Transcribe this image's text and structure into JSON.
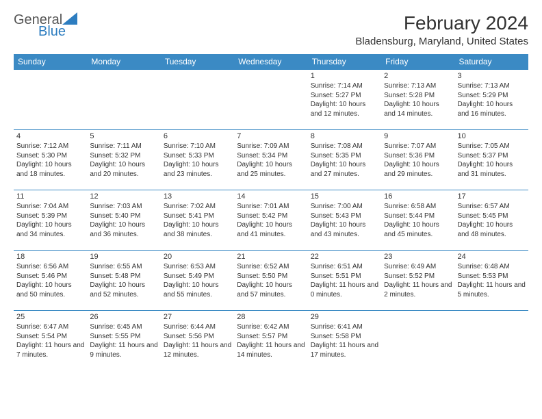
{
  "brand": {
    "general": "General",
    "blue": "Blue",
    "accent_color": "#2d7dc0"
  },
  "title": "February 2024",
  "location": "Bladensburg, Maryland, United States",
  "header_bg": "#3b8ac4",
  "weekdays": [
    "Sunday",
    "Monday",
    "Tuesday",
    "Wednesday",
    "Thursday",
    "Friday",
    "Saturday"
  ],
  "weeks": [
    [
      null,
      null,
      null,
      null,
      {
        "n": "1",
        "sr": "Sunrise: 7:14 AM",
        "ss": "Sunset: 5:27 PM",
        "dl": "Daylight: 10 hours and 12 minutes."
      },
      {
        "n": "2",
        "sr": "Sunrise: 7:13 AM",
        "ss": "Sunset: 5:28 PM",
        "dl": "Daylight: 10 hours and 14 minutes."
      },
      {
        "n": "3",
        "sr": "Sunrise: 7:13 AM",
        "ss": "Sunset: 5:29 PM",
        "dl": "Daylight: 10 hours and 16 minutes."
      }
    ],
    [
      {
        "n": "4",
        "sr": "Sunrise: 7:12 AM",
        "ss": "Sunset: 5:30 PM",
        "dl": "Daylight: 10 hours and 18 minutes."
      },
      {
        "n": "5",
        "sr": "Sunrise: 7:11 AM",
        "ss": "Sunset: 5:32 PM",
        "dl": "Daylight: 10 hours and 20 minutes."
      },
      {
        "n": "6",
        "sr": "Sunrise: 7:10 AM",
        "ss": "Sunset: 5:33 PM",
        "dl": "Daylight: 10 hours and 23 minutes."
      },
      {
        "n": "7",
        "sr": "Sunrise: 7:09 AM",
        "ss": "Sunset: 5:34 PM",
        "dl": "Daylight: 10 hours and 25 minutes."
      },
      {
        "n": "8",
        "sr": "Sunrise: 7:08 AM",
        "ss": "Sunset: 5:35 PM",
        "dl": "Daylight: 10 hours and 27 minutes."
      },
      {
        "n": "9",
        "sr": "Sunrise: 7:07 AM",
        "ss": "Sunset: 5:36 PM",
        "dl": "Daylight: 10 hours and 29 minutes."
      },
      {
        "n": "10",
        "sr": "Sunrise: 7:05 AM",
        "ss": "Sunset: 5:37 PM",
        "dl": "Daylight: 10 hours and 31 minutes."
      }
    ],
    [
      {
        "n": "11",
        "sr": "Sunrise: 7:04 AM",
        "ss": "Sunset: 5:39 PM",
        "dl": "Daylight: 10 hours and 34 minutes."
      },
      {
        "n": "12",
        "sr": "Sunrise: 7:03 AM",
        "ss": "Sunset: 5:40 PM",
        "dl": "Daylight: 10 hours and 36 minutes."
      },
      {
        "n": "13",
        "sr": "Sunrise: 7:02 AM",
        "ss": "Sunset: 5:41 PM",
        "dl": "Daylight: 10 hours and 38 minutes."
      },
      {
        "n": "14",
        "sr": "Sunrise: 7:01 AM",
        "ss": "Sunset: 5:42 PM",
        "dl": "Daylight: 10 hours and 41 minutes."
      },
      {
        "n": "15",
        "sr": "Sunrise: 7:00 AM",
        "ss": "Sunset: 5:43 PM",
        "dl": "Daylight: 10 hours and 43 minutes."
      },
      {
        "n": "16",
        "sr": "Sunrise: 6:58 AM",
        "ss": "Sunset: 5:44 PM",
        "dl": "Daylight: 10 hours and 45 minutes."
      },
      {
        "n": "17",
        "sr": "Sunrise: 6:57 AM",
        "ss": "Sunset: 5:45 PM",
        "dl": "Daylight: 10 hours and 48 minutes."
      }
    ],
    [
      {
        "n": "18",
        "sr": "Sunrise: 6:56 AM",
        "ss": "Sunset: 5:46 PM",
        "dl": "Daylight: 10 hours and 50 minutes."
      },
      {
        "n": "19",
        "sr": "Sunrise: 6:55 AM",
        "ss": "Sunset: 5:48 PM",
        "dl": "Daylight: 10 hours and 52 minutes."
      },
      {
        "n": "20",
        "sr": "Sunrise: 6:53 AM",
        "ss": "Sunset: 5:49 PM",
        "dl": "Daylight: 10 hours and 55 minutes."
      },
      {
        "n": "21",
        "sr": "Sunrise: 6:52 AM",
        "ss": "Sunset: 5:50 PM",
        "dl": "Daylight: 10 hours and 57 minutes."
      },
      {
        "n": "22",
        "sr": "Sunrise: 6:51 AM",
        "ss": "Sunset: 5:51 PM",
        "dl": "Daylight: 11 hours and 0 minutes."
      },
      {
        "n": "23",
        "sr": "Sunrise: 6:49 AM",
        "ss": "Sunset: 5:52 PM",
        "dl": "Daylight: 11 hours and 2 minutes."
      },
      {
        "n": "24",
        "sr": "Sunrise: 6:48 AM",
        "ss": "Sunset: 5:53 PM",
        "dl": "Daylight: 11 hours and 5 minutes."
      }
    ],
    [
      {
        "n": "25",
        "sr": "Sunrise: 6:47 AM",
        "ss": "Sunset: 5:54 PM",
        "dl": "Daylight: 11 hours and 7 minutes."
      },
      {
        "n": "26",
        "sr": "Sunrise: 6:45 AM",
        "ss": "Sunset: 5:55 PM",
        "dl": "Daylight: 11 hours and 9 minutes."
      },
      {
        "n": "27",
        "sr": "Sunrise: 6:44 AM",
        "ss": "Sunset: 5:56 PM",
        "dl": "Daylight: 11 hours and 12 minutes."
      },
      {
        "n": "28",
        "sr": "Sunrise: 6:42 AM",
        "ss": "Sunset: 5:57 PM",
        "dl": "Daylight: 11 hours and 14 minutes."
      },
      {
        "n": "29",
        "sr": "Sunrise: 6:41 AM",
        "ss": "Sunset: 5:58 PM",
        "dl": "Daylight: 11 hours and 17 minutes."
      },
      null,
      null
    ]
  ]
}
